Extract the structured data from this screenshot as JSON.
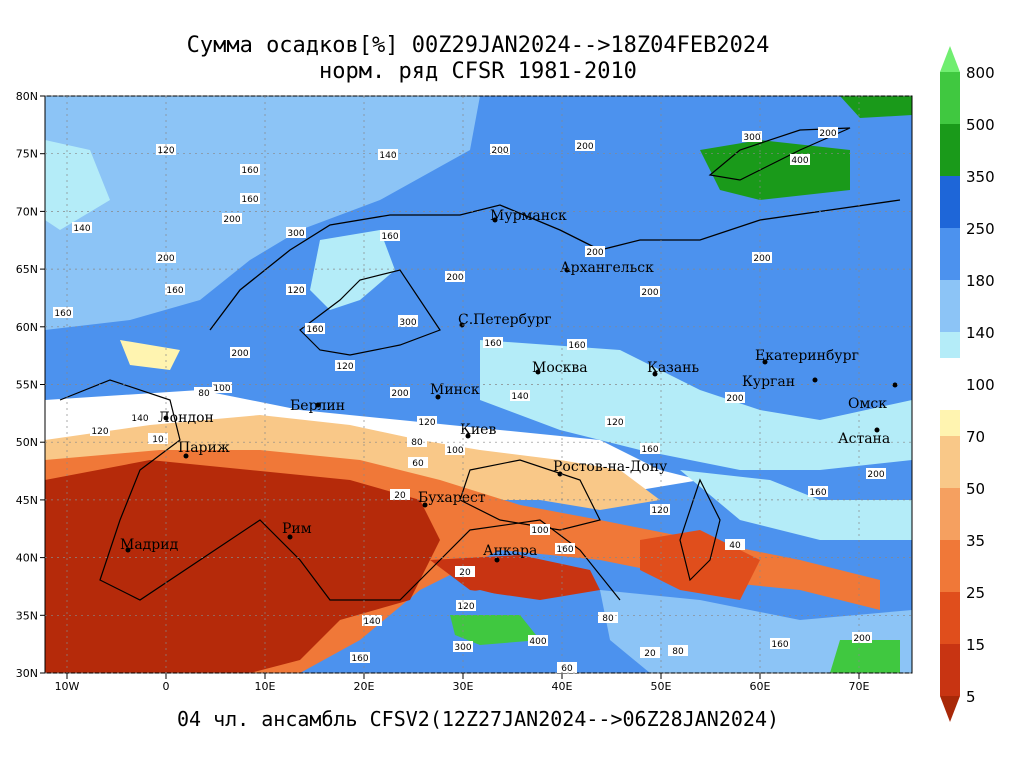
{
  "title": "Сумма осадков[%] 00Z29JAN2024-->18Z04FEB2024",
  "subtitle": "норм. ряд CFSR 1981-2010",
  "footer": "04 чл. ансамбль CFSV2(12Z27JAN2024-->06Z28JAN2024)",
  "map": {
    "lon_ticks": [
      {
        "value": -10,
        "label": "10W"
      },
      0,
      {
        "value": 10,
        "label": "10E"
      },
      {
        "value": 20,
        "label": "20E"
      },
      {
        "value": 30,
        "label": "30E"
      },
      {
        "value": 40,
        "label": "40E"
      },
      {
        "value": 50,
        "label": "50E"
      },
      {
        "value": 60,
        "label": "60E"
      },
      {
        "value": 70,
        "label": "70E"
      }
    ],
    "lat_ticks": [
      {
        "value": 80,
        "label": "80N"
      },
      {
        "value": 75,
        "label": "75N"
      },
      {
        "value": 70,
        "label": "70N"
      },
      {
        "value": 65,
        "label": "65N"
      },
      {
        "value": 60,
        "label": "60N"
      },
      {
        "value": 55,
        "label": "55N"
      },
      {
        "value": 50,
        "label": "50N"
      },
      {
        "value": 45,
        "label": "45N"
      },
      {
        "value": 40,
        "label": "40N"
      },
      {
        "value": 35,
        "label": "35N"
      },
      {
        "value": 30,
        "label": "30N"
      }
    ],
    "cities": [
      "Мурманск",
      "Архангельск",
      "С.Петербург",
      "Москва",
      "Казань",
      "Екатеринбург",
      "Курган",
      "Омск",
      "Астана",
      "Минск",
      "Берлин",
      "Лондон",
      "Париж",
      "Киев",
      "Ростов-на-Дону",
      "Бухарест",
      "Рим",
      "Мадрид",
      "Анкара"
    ],
    "contour_labels": [
      120,
      140,
      200,
      200,
      300,
      200,
      400,
      160,
      160,
      200,
      140,
      300,
      160,
      200,
      160,
      200,
      200,
      200,
      200,
      160,
      120,
      160,
      140,
      160,
      160,
      200,
      120,
      140,
      200,
      200,
      100,
      80,
      140,
      120,
      120,
      120,
      80,
      100,
      160,
      20,
      60,
      200,
      160,
      120,
      100,
      160,
      40,
      20,
      120,
      140,
      160,
      300,
      400,
      80,
      160,
      200,
      60,
      20,
      80,
      300,
      10
    ]
  },
  "colorbar": {
    "levels": [
      5,
      15,
      25,
      35,
      50,
      70,
      100,
      140,
      180,
      250,
      350,
      500,
      800
    ],
    "colors": [
      "#a82808",
      "#c83412",
      "#e04e1c",
      "#f07838",
      "#f5a060",
      "#f9c888",
      "#fff4b0",
      "#b4ecf8",
      "#8cc4f6",
      "#4c92ee",
      "#1e66d8",
      "#1a9a1a",
      "#40c840",
      "#70ee70"
    ]
  }
}
